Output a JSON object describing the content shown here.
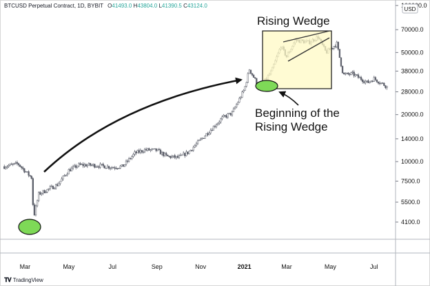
{
  "header": {
    "symbol": "BTCUSD Perpetual Contract, 1D, BYBIT",
    "open_label": "O",
    "open": "41493.0",
    "high_label": "H",
    "high": "43804.0",
    "low_label": "L",
    "low": "41390.5",
    "close_label": "C",
    "close": "43124.0"
  },
  "currency_badge": "USD",
  "logo_text": "TradingView",
  "chart_data": {
    "type": "line",
    "y_scale": "log",
    "y_ticks": [
      "100000.0",
      "70000.0",
      "50000.0",
      "38000.0",
      "28000.0",
      "20000.0",
      "14000.0",
      "10000.0",
      "7500.0",
      "5500.0",
      "4100.0"
    ],
    "x_ticks": [
      "Mar",
      "May",
      "Jul",
      "Sep",
      "Nov",
      "2021",
      "Mar",
      "May",
      "Jul"
    ],
    "x": [
      "2020-02-01",
      "2020-02-20",
      "2020-03-01",
      "2020-03-10",
      "2020-03-13",
      "2020-03-20",
      "2020-04-01",
      "2020-04-15",
      "2020-05-01",
      "2020-05-15",
      "2020-06-01",
      "2020-06-15",
      "2020-07-01",
      "2020-07-15",
      "2020-08-01",
      "2020-08-15",
      "2020-09-01",
      "2020-09-15",
      "2020-10-01",
      "2020-10-15",
      "2020-11-01",
      "2020-11-15",
      "2020-12-01",
      "2020-12-15",
      "2021-01-01",
      "2021-01-08",
      "2021-01-20",
      "2021-01-28",
      "2021-02-08",
      "2021-02-21",
      "2021-03-01",
      "2021-03-13",
      "2021-04-01",
      "2021-04-14",
      "2021-04-25",
      "2021-05-10",
      "2021-05-19",
      "2021-06-01",
      "2021-06-22",
      "2021-07-01",
      "2021-07-20"
    ],
    "values": [
      9300,
      9700,
      8700,
      7900,
      4400,
      6200,
      6600,
      7100,
      8800,
      9500,
      9500,
      9400,
      9200,
      9300,
      11300,
      11900,
      11800,
      10800,
      10600,
      11500,
      13800,
      16000,
      19000,
      20500,
      29000,
      39000,
      31000,
      32000,
      38000,
      55000,
      47000,
      60000,
      58000,
      63000,
      50000,
      57000,
      36000,
      36500,
      32000,
      34000,
      30000
    ],
    "annotations": {
      "wedge_title": "Rising Wedge",
      "wedge_start_line1": "Beginning of the",
      "wedge_start_line2": "Rising Wedge"
    }
  }
}
